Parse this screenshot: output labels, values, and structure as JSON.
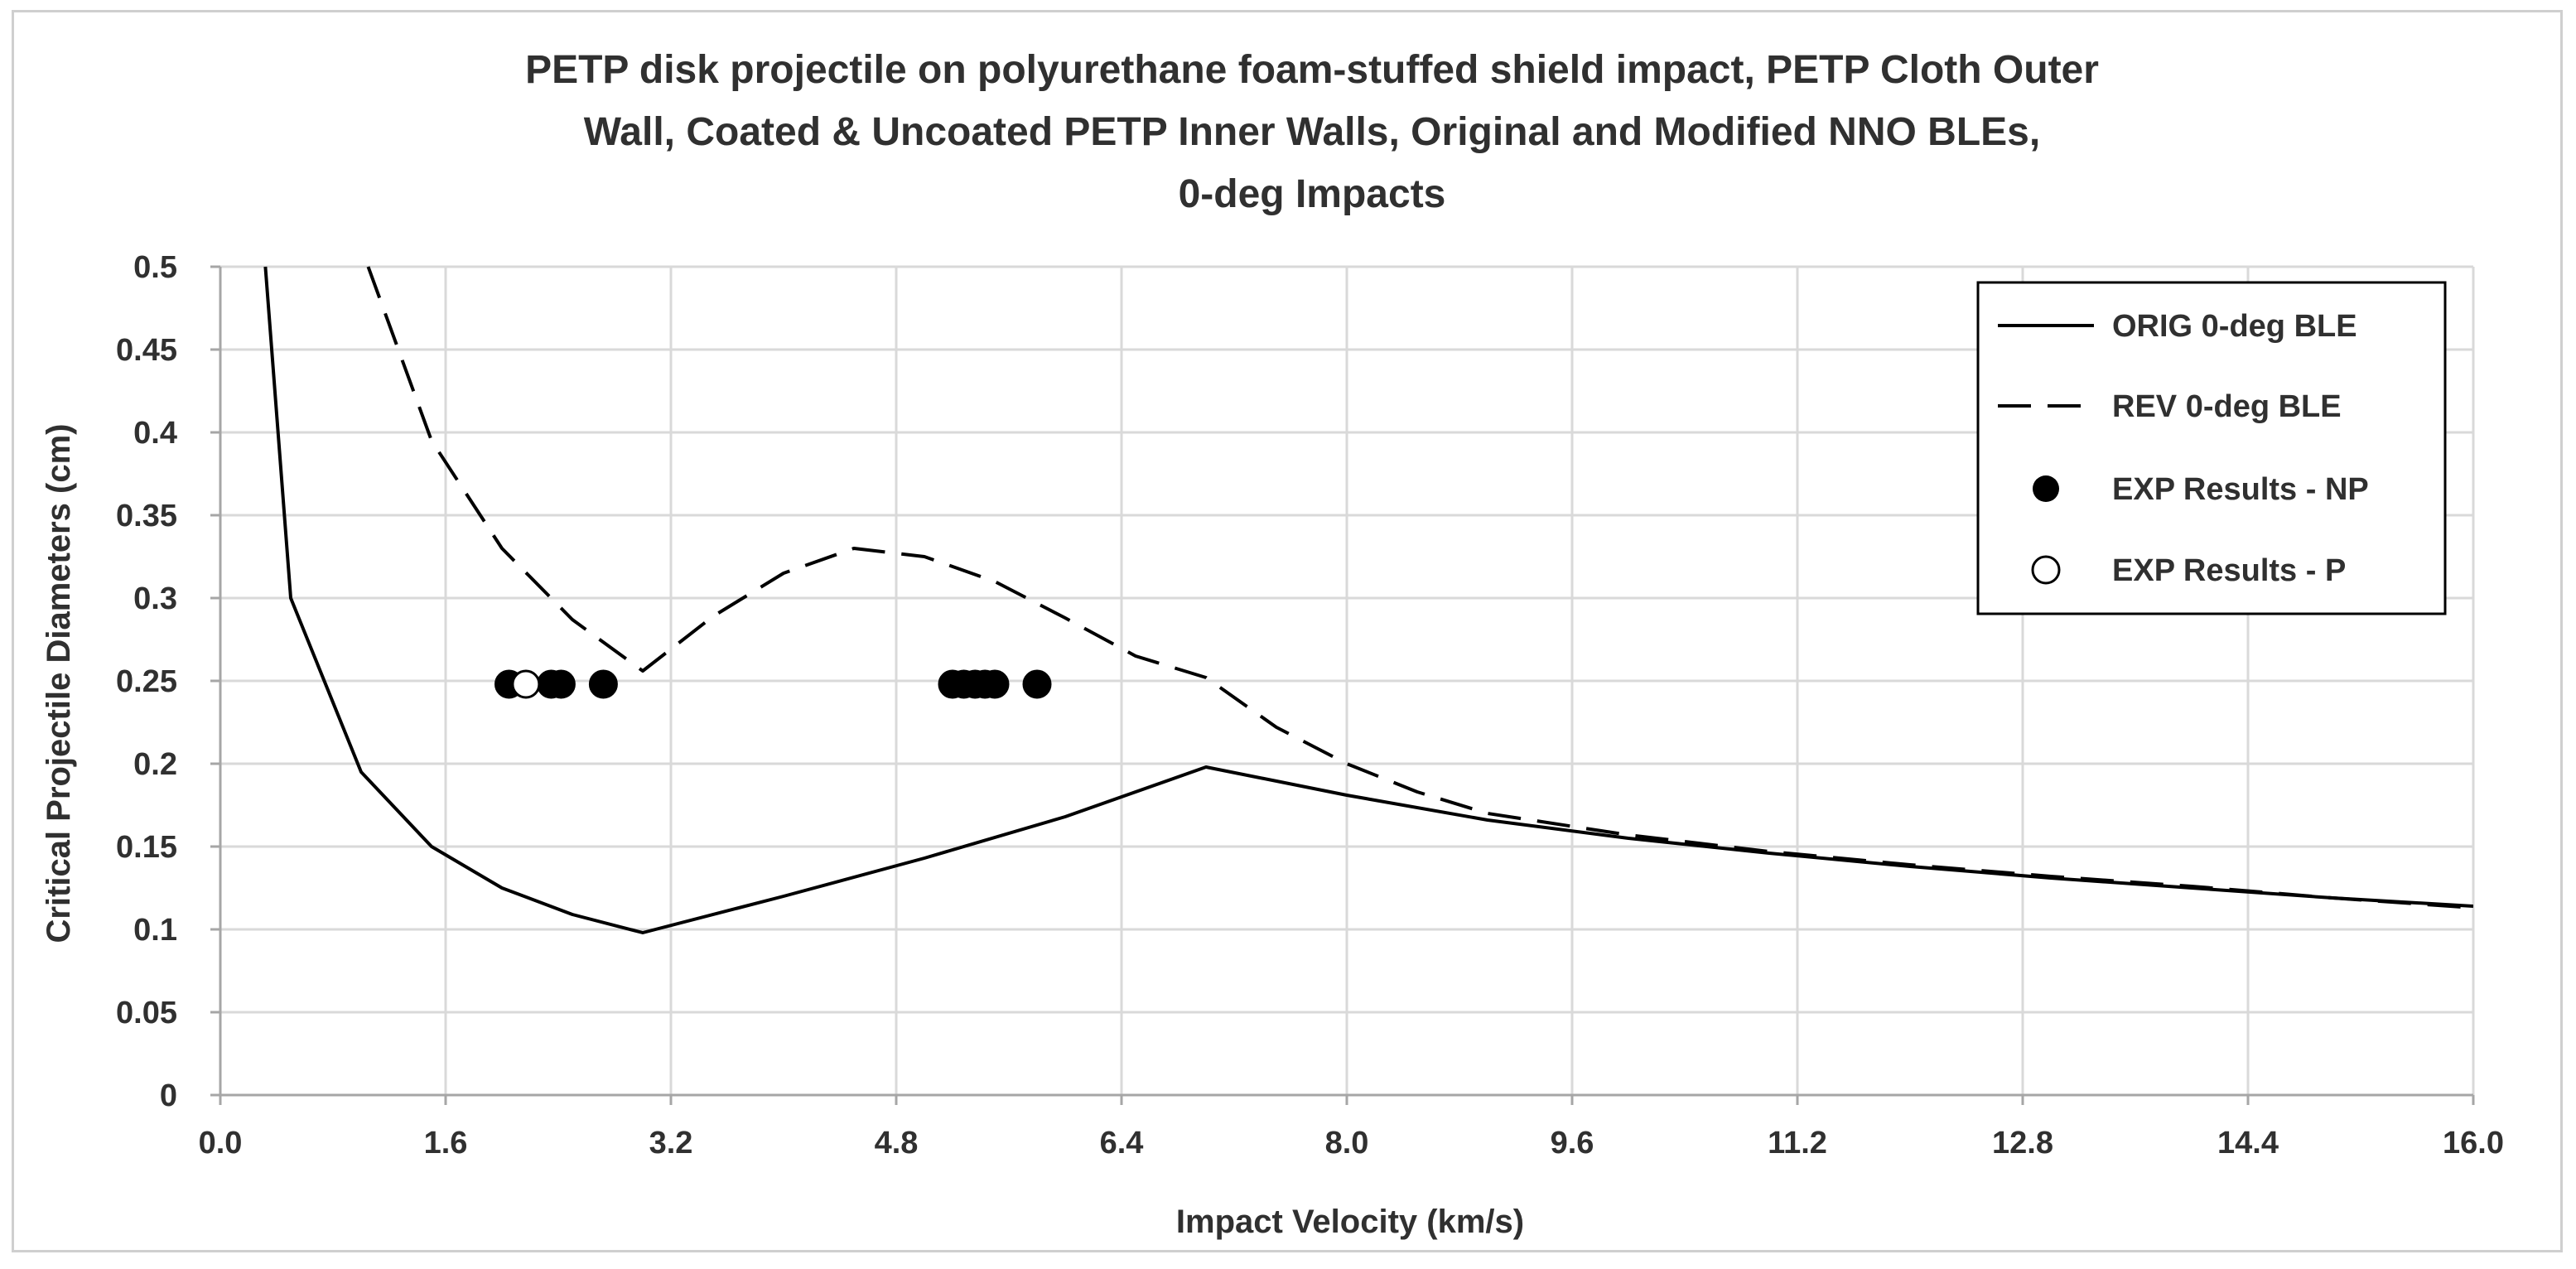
{
  "chart_data": {
    "type": "line",
    "title_lines": [
      "PETP disk projectile on polyurethane foam-stuffed shield impact, PETP Cloth Outer",
      "Wall, Coated & Uncoated PETP Inner Walls, Original and Modified NNO BLEs,",
      "0-deg Impacts"
    ],
    "xlabel": "Impact Velocity (km/s)",
    "ylabel": "Critical Projectile Diameters (cm)",
    "xlim": [
      0,
      16
    ],
    "ylim": [
      0,
      0.5
    ],
    "x_ticks": [
      0,
      1.6,
      3.2,
      4.8,
      6.4,
      8.0,
      9.6,
      11.2,
      12.8,
      14.4,
      16.0
    ],
    "x_tick_labels": [
      "0.0",
      "1.6",
      "3.2",
      "4.8",
      "6.4",
      "8.0",
      "9.6",
      "11.2",
      "12.8",
      "14.4",
      "16.0"
    ],
    "y_ticks": [
      0,
      0.05,
      0.1,
      0.15,
      0.2,
      0.25,
      0.3,
      0.35,
      0.4,
      0.45,
      0.5
    ],
    "y_tick_labels": [
      "0",
      "0.05",
      "0.1",
      "0.15",
      "0.2",
      "0.25",
      "0.3",
      "0.35",
      "0.4",
      "0.45",
      "0.5"
    ],
    "grid": true,
    "legend_position": "top-right",
    "series": [
      {
        "name": "ORIG 0-deg BLE",
        "style": "solid",
        "color": "#000000",
        "x": [
          0.32,
          0.5,
          1.0,
          1.5,
          2.0,
          2.5,
          3.0,
          4.0,
          5.0,
          6.0,
          7.0,
          8.0,
          9.0,
          10.0,
          11.0,
          12.0,
          13.0,
          14.0,
          15.0,
          16.0
        ],
        "y": [
          0.5,
          0.3,
          0.195,
          0.15,
          0.125,
          0.109,
          0.098,
          0.12,
          0.143,
          0.168,
          0.198,
          0.181,
          0.166,
          0.155,
          0.146,
          0.138,
          0.131,
          0.125,
          0.119,
          0.114
        ]
      },
      {
        "name": "REV 0-deg BLE",
        "style": "dashed",
        "color": "#000000",
        "x": [
          1.05,
          1.5,
          2.0,
          2.5,
          3.0,
          3.5,
          4.0,
          4.5,
          5.0,
          5.5,
          6.0,
          6.5,
          7.0,
          7.5,
          8.0,
          8.5,
          9.0,
          10.0,
          11.0,
          12.0,
          13.0,
          14.0,
          15.0,
          16.0
        ],
        "y": [
          0.5,
          0.395,
          0.33,
          0.287,
          0.256,
          0.289,
          0.315,
          0.33,
          0.325,
          0.31,
          0.288,
          0.265,
          0.252,
          0.222,
          0.2,
          0.183,
          0.17,
          0.157,
          0.147,
          0.139,
          0.132,
          0.126,
          0.119,
          0.113
        ]
      },
      {
        "name": "EXP Results - NP",
        "style": "marker-filled",
        "color": "#000000",
        "x": [
          2.05,
          2.35,
          2.42,
          2.72,
          5.2,
          5.28,
          5.36,
          5.43,
          5.5,
          5.8
        ],
        "y": [
          0.248,
          0.248,
          0.248,
          0.248,
          0.248,
          0.248,
          0.248,
          0.248,
          0.248,
          0.248
        ]
      },
      {
        "name": "EXP Results - P",
        "style": "marker-open",
        "color": "#000000",
        "x": [
          2.17
        ],
        "y": [
          0.248
        ]
      }
    ]
  }
}
